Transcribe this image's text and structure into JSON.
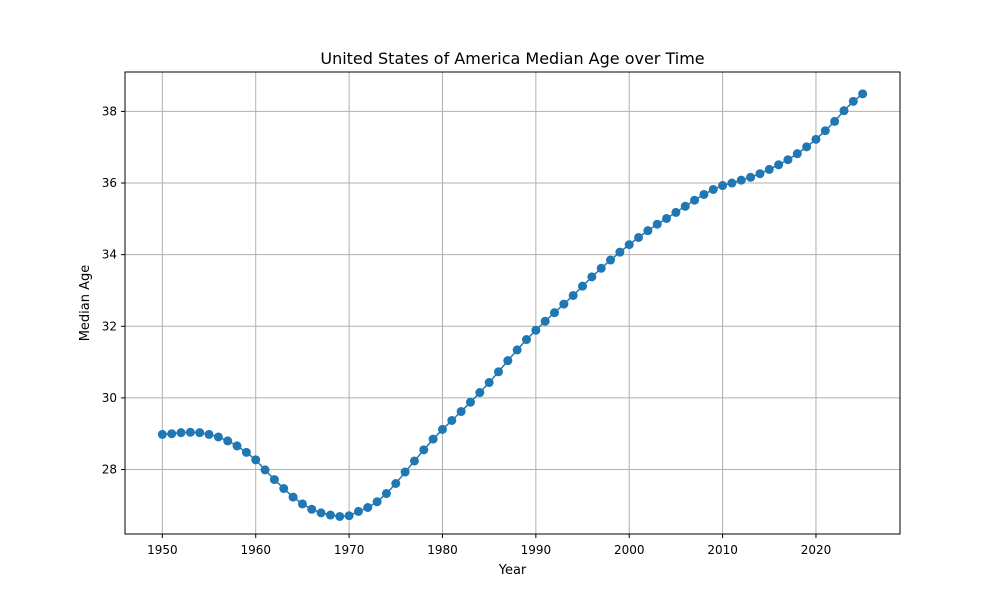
{
  "chart_data": {
    "type": "line",
    "title": "United States of America Median Age over Time",
    "xlabel": "Year",
    "ylabel": "Median Age",
    "xlim": [
      1946,
      2029
    ],
    "ylim": [
      26.2,
      39.1
    ],
    "xticks": [
      1950,
      1960,
      1970,
      1980,
      1990,
      2000,
      2010,
      2020
    ],
    "yticks": [
      28,
      30,
      32,
      34,
      36,
      38
    ],
    "grid": true,
    "series": [
      {
        "name": "Median Age",
        "color": "#1f77b4",
        "marker": "circle",
        "x": [
          1950,
          1951,
          1952,
          1953,
          1954,
          1955,
          1956,
          1957,
          1958,
          1959,
          1960,
          1961,
          1962,
          1963,
          1964,
          1965,
          1966,
          1967,
          1968,
          1969,
          1970,
          1971,
          1972,
          1973,
          1974,
          1975,
          1976,
          1977,
          1978,
          1979,
          1980,
          1981,
          1982,
          1983,
          1984,
          1985,
          1986,
          1987,
          1988,
          1989,
          1990,
          1991,
          1992,
          1993,
          1994,
          1995,
          1996,
          1997,
          1998,
          1999,
          2000,
          2001,
          2002,
          2003,
          2004,
          2005,
          2006,
          2007,
          2008,
          2009,
          2010,
          2011,
          2012,
          2013,
          2014,
          2015,
          2016,
          2017,
          2018,
          2019,
          2020,
          2021,
          2022,
          2023,
          2024,
          2025
        ],
        "values": [
          28.98,
          29.0,
          29.03,
          29.04,
          29.03,
          28.98,
          28.91,
          28.8,
          28.66,
          28.48,
          28.27,
          27.99,
          27.72,
          27.47,
          27.23,
          27.04,
          26.89,
          26.79,
          26.73,
          26.69,
          26.71,
          26.83,
          26.94,
          27.1,
          27.33,
          27.61,
          27.93,
          28.24,
          28.55,
          28.85,
          29.12,
          29.37,
          29.62,
          29.88,
          30.15,
          30.43,
          30.73,
          31.04,
          31.34,
          31.63,
          31.89,
          32.14,
          32.38,
          32.62,
          32.86,
          33.12,
          33.38,
          33.62,
          33.85,
          34.07,
          34.28,
          34.48,
          34.67,
          34.85,
          35.01,
          35.18,
          35.35,
          35.52,
          35.68,
          35.82,
          35.93,
          36.0,
          36.08,
          36.16,
          36.26,
          36.38,
          36.51,
          36.65,
          36.82,
          37.01,
          37.22,
          37.46,
          37.72,
          38.02,
          38.28,
          38.49
        ]
      }
    ]
  }
}
